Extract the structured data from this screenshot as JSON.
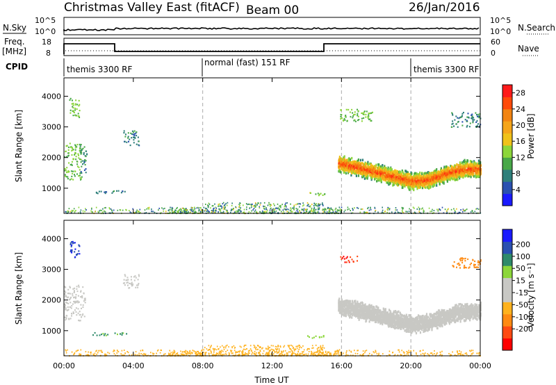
{
  "title": {
    "station": "Christmas Valley East (fitACF)",
    "beam": "Beam 00",
    "date": "26/Jan/2016"
  },
  "colors": {
    "power_scale": [
      "#1a1aff",
      "#2a50b0",
      "#2e7f7a",
      "#48a848",
      "#8cd63a",
      "#f0c21a",
      "#f5a51a",
      "#f28412",
      "#ff4a0a",
      "#ff1a1a"
    ],
    "velocity_scale": [
      "#ff0000",
      "#ff4a12",
      "#ff8a12",
      "#ffb21e",
      "#c8c8c4",
      "#c8c8c4",
      "#8cd63a",
      "#2e8a6a",
      "#2a50b0",
      "#1a1aff"
    ],
    "ground_scatter": "#c8c8c4"
  },
  "top_panels": {
    "nsky_label": "N.Sky",
    "nsearch_label": "N.Search",
    "nsky_ticks": [
      "10^5",
      "10^0"
    ],
    "nsky_ticks_right": [
      "10^5",
      "10^0"
    ],
    "freq_label": "Freq.",
    "freq_unit": "[MHz]",
    "freq_ticks": [
      "18",
      "8"
    ],
    "nave_ticks": [
      "60",
      "0"
    ],
    "nave_label": "Nave",
    "cpid_label": "CPID",
    "cpid_segments": [
      {
        "name": "themis 3300 RF",
        "start": 0,
        "end": 8
      },
      {
        "name": "normal (fast) 151 RF",
        "start": 8,
        "end": 20
      },
      {
        "name": "themis 3300 RF",
        "start": 20,
        "end": 24
      }
    ]
  },
  "chart_data": [
    {
      "type": "heatmap",
      "name": "Power",
      "ylabel": "Slant Range [km]",
      "yticks": [
        1000,
        2000,
        3000,
        4000
      ],
      "ylim": [
        180,
        4600
      ],
      "xlim": [
        0,
        24
      ],
      "colorbar_label": "Power [dB]",
      "colorbar_ticks": [
        4,
        8,
        12,
        16,
        20,
        24,
        28
      ],
      "colorbar_range": [
        0,
        30
      ],
      "scatter_regions": [
        {
          "t0": 0.3,
          "t1": 0.9,
          "r0": 3300,
          "r1": 3950,
          "value": 12
        },
        {
          "t0": 0.0,
          "t1": 1.0,
          "r0": 1300,
          "r1": 2500,
          "value": 12
        },
        {
          "t0": 0.9,
          "t1": 1.3,
          "r0": 1500,
          "r1": 2400,
          "value": 8
        },
        {
          "t0": 1.6,
          "t1": 3.6,
          "r0": 850,
          "r1": 960,
          "value": 8
        },
        {
          "t0": 3.4,
          "t1": 4.3,
          "r0": 2400,
          "r1": 2900,
          "value": 8
        },
        {
          "t0": 14.0,
          "t1": 15.0,
          "r0": 780,
          "r1": 880,
          "value": 14
        },
        {
          "t0": 15.9,
          "t1": 17.8,
          "r0": 3200,
          "r1": 3600,
          "value": 12
        },
        {
          "t0": 22.3,
          "t1": 24.0,
          "r0": 3000,
          "r1": 3500,
          "value": 8
        }
      ],
      "echo_band": {
        "t0": 15.8,
        "t1": 24.0,
        "center_km": [
          [
            15.8,
            1850
          ],
          [
            17,
            1700
          ],
          [
            18,
            1550
          ],
          [
            19,
            1400
          ],
          [
            20,
            1250
          ],
          [
            21,
            1300
          ],
          [
            22,
            1500
          ],
          [
            23,
            1650
          ],
          [
            24,
            1650
          ]
        ],
        "halfwidth_km": 240,
        "peak_db": 26
      },
      "near_range_band": {
        "t0": 0,
        "t1": 24,
        "r0": 200,
        "r1": 450,
        "value": 10
      }
    },
    {
      "type": "heatmap",
      "name": "Velocity",
      "ylabel": "Slant Range [km]",
      "yticks": [
        1000,
        2000,
        3000,
        4000
      ],
      "ylim": [
        180,
        4600
      ],
      "xlim": [
        0,
        24
      ],
      "xlabel": "Time UT",
      "xticks": [
        "00:00",
        "04:00",
        "08:00",
        "12:00",
        "16:00",
        "20:00",
        "00:00"
      ],
      "colorbar_label": "Velocity [m s⁻¹]",
      "colorbar_ticks": [
        200,
        100,
        50,
        15,
        -15,
        -50,
        -100,
        -200
      ],
      "scatter_regions": [
        {
          "t0": 0.3,
          "t1": 0.9,
          "r0": 3400,
          "r1": 3950,
          "value": 200
        },
        {
          "t0": 0.0,
          "t1": 1.2,
          "r0": 1300,
          "r1": 2500,
          "value": 0
        },
        {
          "t0": 1.6,
          "t1": 3.6,
          "r0": 850,
          "r1": 960,
          "value": 50
        },
        {
          "t0": 3.4,
          "t1": 4.3,
          "r0": 2400,
          "r1": 2900,
          "value": 0
        },
        {
          "t0": 14.0,
          "t1": 15.0,
          "r0": 780,
          "r1": 880,
          "value": 30
        },
        {
          "t0": 15.9,
          "t1": 16.9,
          "r0": 3250,
          "r1": 3450,
          "value": -200
        },
        {
          "t0": 22.3,
          "t1": 24.0,
          "r0": 3050,
          "r1": 3400,
          "value": -80
        }
      ],
      "echo_band": {
        "t0": 15.8,
        "t1": 24.0,
        "center_km": [
          [
            15.8,
            1850
          ],
          [
            17,
            1700
          ],
          [
            18,
            1550
          ],
          [
            19,
            1400
          ],
          [
            20,
            1250
          ],
          [
            21,
            1300
          ],
          [
            22,
            1500
          ],
          [
            23,
            1650
          ],
          [
            24,
            1650
          ]
        ],
        "halfwidth_km": 240,
        "value": 0
      },
      "near_range_band": {
        "t0": 0,
        "t1": 24,
        "r0": 200,
        "r1": 450,
        "value": -40
      }
    }
  ]
}
